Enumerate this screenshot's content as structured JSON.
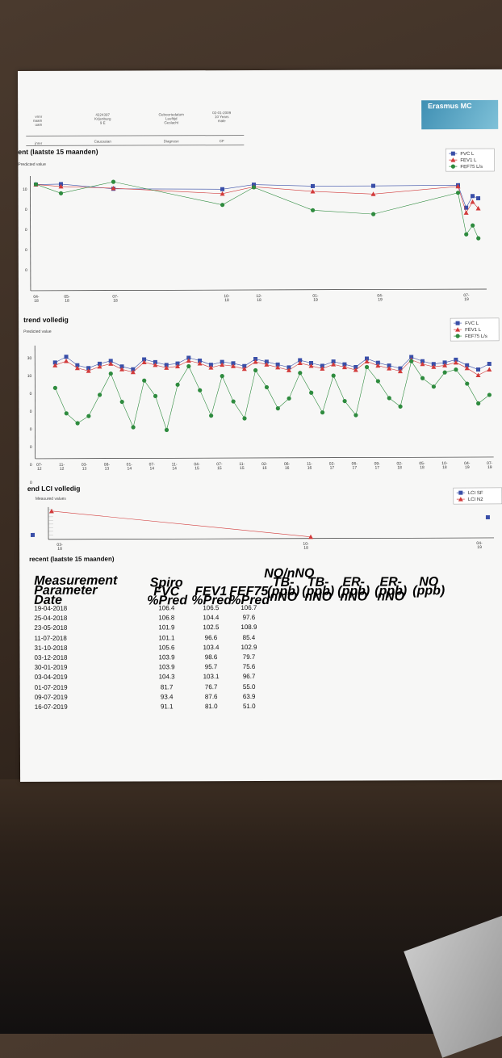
{
  "header": {
    "left_labels": [
      "vnnr",
      "naam",
      "uam"
    ],
    "col2": [
      "4224397",
      "Krijenburg",
      "9 E"
    ],
    "col3": [
      "Geboortedatum",
      "Leeftijd",
      "Geslacht"
    ],
    "col4": [
      "02-01-2009",
      "10 Years",
      "male"
    ],
    "row2_label": "jnrer",
    "row2_val": "Caucasian",
    "row2_label2": "Diagnose",
    "row2_val2": "CF"
  },
  "logo": {
    "text": "Erasmus MC"
  },
  "chart1": {
    "title": "ent (laatste 15 maanden)",
    "subtitle": "Predicted value",
    "legend": [
      "FVC L",
      "FEV1 L",
      "FEF75 L/s"
    ]
  },
  "chart2": {
    "title": "trend volledig",
    "subtitle": "Predicted value",
    "legend": [
      "FVC L",
      "FEV1 L",
      "FEF75 L/s"
    ]
  },
  "chart3": {
    "title": "end LCI volledig",
    "subtitle": "Measured values",
    "legend": [
      "LCI SF",
      "LCI N2"
    ]
  },
  "colors": {
    "fvc": "#3a4fa8",
    "fev1": "#d23a3a",
    "fef75": "#2e8b3e"
  },
  "chart_data": [
    {
      "type": "line",
      "title": "ent (laatste 15 maanden)",
      "y_ticks": [
        "10",
        "0",
        "0",
        "0",
        "0"
      ],
      "x_ticks": [
        "04-\n18",
        "05-\n18",
        "07-\n18",
        "10-\n18",
        "12-\n18",
        "01-\n19",
        "04-\n19",
        "07-\n19"
      ],
      "series": [
        {
          "name": "FVC L",
          "values": [
            106.4,
            106.8,
            101.9,
            101.1,
            105.6,
            103.9,
            103.9,
            104.3,
            81.7,
            93.4,
            91.1
          ]
        },
        {
          "name": "FEV1 L",
          "values": [
            106.5,
            104.4,
            102.5,
            96.6,
            103.4,
            98.6,
            95.7,
            103.1,
            76.7,
            87.6,
            81.0
          ]
        },
        {
          "name": "FEF75 L/s",
          "values": [
            106.7,
            97.6,
            108.9,
            85.4,
            102.9,
            79.7,
            75.6,
            96.7,
            55.0,
            63.9,
            51.0
          ]
        }
      ]
    },
    {
      "type": "line",
      "title": "trend volledig",
      "y_ticks": [
        "30",
        "10",
        "0",
        "0",
        "0",
        "0",
        "0",
        "0"
      ],
      "x_ticks": [
        "07-\n12",
        "11-\n12",
        "03-\n13",
        "08-\n13",
        "01-\n14",
        "07-\n14",
        "11-\n14",
        "04-\n15",
        "07-\n15",
        "11-\n15",
        "02-\n16",
        "06-\n16",
        "11-\n16",
        "02-\n17",
        "06-\n17",
        "09-\n17",
        "02-\n18",
        "05-\n18",
        "10-\n18",
        "04-\n19",
        "07-\n19"
      ],
      "series": [
        {
          "name": "FVC L",
          "values": [
            98,
            102,
            96,
            94,
            97,
            99,
            95,
            93,
            100,
            98,
            96,
            97,
            101,
            99,
            96,
            98,
            97,
            95,
            100,
            98,
            96,
            94,
            99,
            97,
            95,
            98,
            96,
            94,
            100,
            97,
            95,
            93,
            101,
            98,
            96,
            97,
            99,
            95,
            92,
            96
          ]
        },
        {
          "name": "FEV1 L",
          "values": [
            96,
            99,
            94,
            92,
            95,
            97,
            93,
            91,
            98,
            96,
            94,
            95,
            99,
            97,
            94,
            96,
            95,
            93,
            98,
            96,
            94,
            92,
            97,
            95,
            93,
            96,
            94,
            92,
            98,
            95,
            93,
            91,
            99,
            96,
            94,
            95,
            97,
            93,
            88,
            92
          ]
        },
        {
          "name": "FEF75 L/s",
          "values": [
            80,
            62,
            55,
            60,
            75,
            90,
            70,
            52,
            85,
            74,
            50,
            82,
            95,
            78,
            60,
            88,
            70,
            58,
            92,
            80,
            65,
            72,
            90,
            76,
            62,
            88,
            70,
            60,
            94,
            84,
            72,
            66,
            98,
            86,
            80,
            90,
            92,
            82,
            68,
            74
          ]
        }
      ]
    },
    {
      "type": "line",
      "title": "end LCI volledig",
      "x_ticks": [
        "03-\n18",
        "10-\n18",
        "04-\n19"
      ],
      "series": [
        {
          "name": "LCI SF",
          "values": []
        },
        {
          "name": "LCI N2",
          "values": []
        }
      ]
    }
  ],
  "table": {
    "title": "recent (laatste 15 maanden)",
    "row_labels": [
      "Measurement",
      "Parameter",
      "Date"
    ],
    "headers": [
      {
        "l1": "",
        "l2": "Spiro",
        "l3": "FVC",
        "l4": "%Pred"
      },
      {
        "l1": "",
        "l2": "",
        "l3": "FEV1",
        "l4": "%Pred"
      },
      {
        "l1": "",
        "l2": "",
        "l3": "FEF75",
        "l4": "%Pred"
      },
      {
        "l1": "NO/nNO",
        "l2": "TB-nNO",
        "l3": "(ppb)",
        "l4": ""
      },
      {
        "l1": "",
        "l2": "TB-nNO",
        "l3": "(ppb)",
        "l4": ""
      },
      {
        "l1": "",
        "l2": "ER-nNO",
        "l3": "(ppb)",
        "l4": ""
      },
      {
        "l1": "",
        "l2": "ER-nNO",
        "l3": "(ppb)",
        "l4": ""
      },
      {
        "l1": "",
        "l2": "NO",
        "l3": "(ppb)",
        "l4": ""
      }
    ],
    "rows": [
      {
        "date": "19-04-2018",
        "fvc": "106.4",
        "fev1": "106.5",
        "fef75": "106.7"
      },
      {
        "date": "25-04-2018",
        "fvc": "106.8",
        "fev1": "104.4",
        "fef75": "97.6"
      },
      {
        "date": "23-05-2018",
        "fvc": "101.9",
        "fev1": "102.5",
        "fef75": "108.9"
      },
      {
        "date": "11-07-2018",
        "fvc": "101.1",
        "fev1": "96.6",
        "fef75": "85.4"
      },
      {
        "date": "31-10-2018",
        "fvc": "105.6",
        "fev1": "103.4",
        "fef75": "102.9"
      },
      {
        "date": "03-12-2018",
        "fvc": "103.9",
        "fev1": "98.6",
        "fef75": "79.7"
      },
      {
        "date": "30-01-2019",
        "fvc": "103.9",
        "fev1": "95.7",
        "fef75": "75.6"
      },
      {
        "date": "03-04-2019",
        "fvc": "104.3",
        "fev1": "103.1",
        "fef75": "96.7"
      },
      {
        "date": "01-07-2019",
        "fvc": "81.7",
        "fev1": "76.7",
        "fef75": "55.0"
      },
      {
        "date": "09-07-2019",
        "fvc": "93.4",
        "fev1": "87.6",
        "fef75": "63.9"
      },
      {
        "date": "16-07-2019",
        "fvc": "91.1",
        "fev1": "81.0",
        "fef75": "51.0"
      }
    ]
  }
}
